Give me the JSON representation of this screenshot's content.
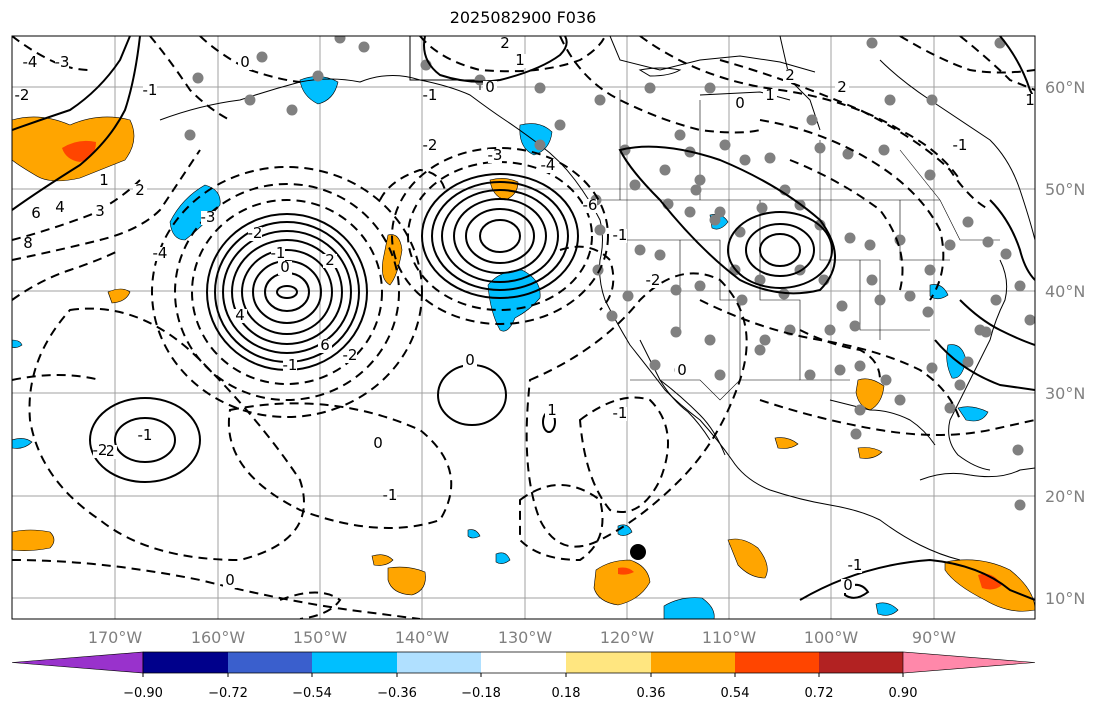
{
  "title": "2025082900 F036",
  "map": {
    "lat_labels": [
      "60°N",
      "50°N",
      "40°N",
      "30°N",
      "20°N",
      "10°N"
    ],
    "lon_labels": [
      "170°W",
      "160°W",
      "150°W",
      "140°W",
      "130°W",
      "120°W",
      "110°W",
      "100°W",
      "90°W"
    ]
  },
  "colorbar": {
    "tick_labels": [
      "−0.90",
      "−0.72",
      "−0.54",
      "−0.36",
      "−0.18",
      "0.18",
      "0.36",
      "0.54",
      "0.72",
      "0.90"
    ],
    "colors": [
      "#9932cc",
      "#00008b",
      "#3a5fcd",
      "#00bfff",
      "#b0e0ff",
      "#ffffff",
      "#ffe680",
      "#ffa500",
      "#ff4500",
      "#b22222",
      "#ff88aa"
    ]
  },
  "contour_labels": [
    "-4",
    "-3",
    "-2",
    "-1",
    "0",
    "1",
    "2",
    "3",
    "4",
    "6",
    "8",
    "-4",
    "-3",
    "-2",
    "-1",
    "0",
    "2",
    "4",
    "6",
    "-2",
    "-1",
    "0",
    "1",
    "2",
    "-1",
    "-2",
    "0",
    "-1",
    "0",
    "2",
    "1",
    "0",
    "-1",
    "-2",
    "-3",
    "-4",
    "-6",
    "-1",
    "-2",
    "-1",
    "0",
    "-1",
    "0",
    "1",
    "2",
    "0",
    "1",
    "2",
    "-1"
  ]
}
